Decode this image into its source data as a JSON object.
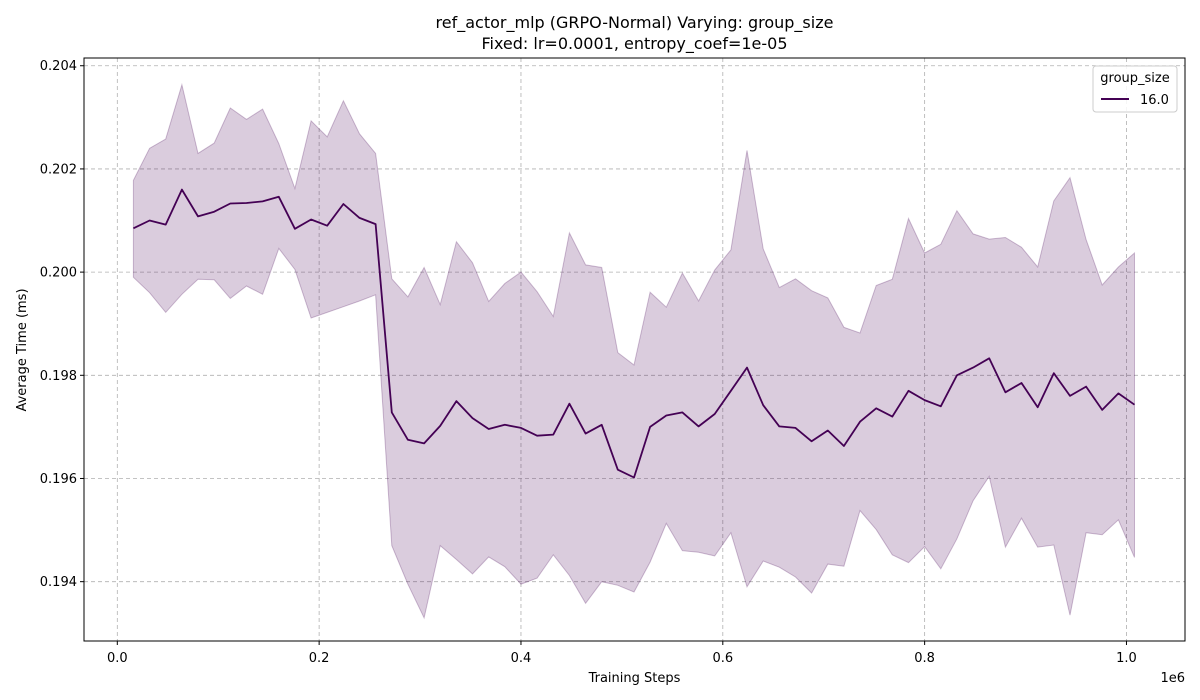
{
  "chart_data": {
    "type": "line",
    "title_line1": "ref_actor_mlp (GRPO-Normal) Varying: group_size",
    "title_line2": "Fixed: lr=0.0001, entropy_coef=1e-05",
    "xlabel": "Training Steps",
    "ylabel": "Average Time (ms)",
    "x_scale_label": "1e6",
    "xlim": [
      -0.033,
      1.058
    ],
    "ylim": [
      0.19285,
      0.20415
    ],
    "x_ticks": [
      0.0,
      0.2,
      0.4,
      0.6,
      0.8,
      1.0
    ],
    "x_tick_labels": [
      "0.0",
      "0.2",
      "0.4",
      "0.6",
      "0.8",
      "1.0"
    ],
    "y_ticks": [
      0.194,
      0.196,
      0.198,
      0.2,
      0.202,
      0.204
    ],
    "y_tick_labels": [
      "0.194",
      "0.196",
      "0.198",
      "0.200",
      "0.202",
      "0.204"
    ],
    "grid": true,
    "legend": {
      "title": "group_size",
      "placement": "top-right"
    },
    "series": [
      {
        "name": "16.0",
        "color": "#440154",
        "x": [
          0.016,
          0.032,
          0.048,
          0.064,
          0.08,
          0.096,
          0.112,
          0.128,
          0.144,
          0.16,
          0.176,
          0.192,
          0.208,
          0.224,
          0.24,
          0.256,
          0.272,
          0.288,
          0.304,
          0.32,
          0.336,
          0.352,
          0.368,
          0.384,
          0.4,
          0.416,
          0.432,
          0.448,
          0.464,
          0.48,
          0.496,
          0.512,
          0.528,
          0.544,
          0.56,
          0.576,
          0.592,
          0.608,
          0.624,
          0.64,
          0.656,
          0.672,
          0.688,
          0.704,
          0.72,
          0.736,
          0.752,
          0.768,
          0.784,
          0.8,
          0.816,
          0.832,
          0.848,
          0.864,
          0.88,
          0.896,
          0.912,
          0.928,
          0.944,
          0.96,
          0.976,
          0.992,
          1.008
        ],
        "values": [
          0.20085,
          0.201,
          0.20092,
          0.2016,
          0.20108,
          0.20117,
          0.20133,
          0.20134,
          0.20137,
          0.20146,
          0.20084,
          0.20102,
          0.2009,
          0.20132,
          0.20105,
          0.20093,
          0.19728,
          0.19675,
          0.19668,
          0.19702,
          0.1975,
          0.19717,
          0.19696,
          0.19704,
          0.19698,
          0.19683,
          0.19685,
          0.19745,
          0.19687,
          0.19704,
          0.19617,
          0.19602,
          0.197,
          0.19722,
          0.19728,
          0.19701,
          0.19725,
          0.1977,
          0.19815,
          0.19742,
          0.19701,
          0.19698,
          0.19672,
          0.19693,
          0.19663,
          0.1971,
          0.19736,
          0.1972,
          0.1977,
          0.19752,
          0.1974,
          0.198,
          0.19815,
          0.19833,
          0.19767,
          0.19785,
          0.19738,
          0.19804,
          0.1976,
          0.19778,
          0.19733,
          0.19765,
          0.19743
        ],
        "upper": [
          0.20178,
          0.2024,
          0.20258,
          0.20363,
          0.2023,
          0.2025,
          0.20318,
          0.20296,
          0.20316,
          0.20249,
          0.20162,
          0.20293,
          0.20262,
          0.20332,
          0.20268,
          0.2023,
          0.19987,
          0.19952,
          0.20009,
          0.19937,
          0.20059,
          0.20018,
          0.19943,
          0.19978,
          0.2,
          0.19962,
          0.19914,
          0.20076,
          0.20014,
          0.20009,
          0.19844,
          0.1982,
          0.19961,
          0.19932,
          0.19998,
          0.19944,
          0.20004,
          0.20043,
          0.20236,
          0.20045,
          0.1997,
          0.19987,
          0.19964,
          0.1995,
          0.19893,
          0.19882,
          0.19974,
          0.19986,
          0.20104,
          0.20037,
          0.20054,
          0.20119,
          0.20074,
          0.20064,
          0.20067,
          0.20048,
          0.2001,
          0.20138,
          0.20183,
          0.20063,
          0.19975,
          0.2001,
          0.20037
        ],
        "lower": [
          0.1999,
          0.1996,
          0.19922,
          0.19957,
          0.19986,
          0.19985,
          0.19949,
          0.19973,
          0.19957,
          0.20046,
          0.20005,
          0.19911,
          0.19922,
          0.19933,
          0.19944,
          0.19956,
          0.1947,
          0.19395,
          0.1933,
          0.1947,
          0.19443,
          0.19415,
          0.19448,
          0.19429,
          0.19395,
          0.19407,
          0.19452,
          0.19412,
          0.19358,
          0.194,
          0.19393,
          0.1938,
          0.19438,
          0.19513,
          0.1946,
          0.19457,
          0.1945,
          0.19495,
          0.1939,
          0.1944,
          0.19428,
          0.19409,
          0.19378,
          0.19434,
          0.1943,
          0.19538,
          0.19501,
          0.19452,
          0.19437,
          0.19468,
          0.19425,
          0.19483,
          0.19557,
          0.19604,
          0.19467,
          0.19523,
          0.19467,
          0.19471,
          0.19335,
          0.19495,
          0.19491,
          0.1952,
          0.19447
        ]
      }
    ]
  }
}
